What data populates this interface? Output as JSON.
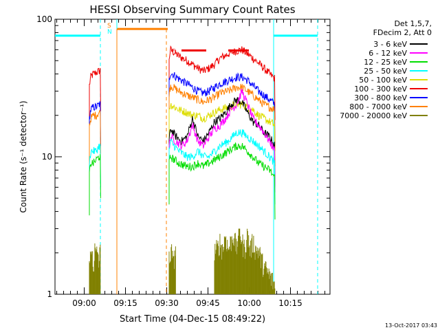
{
  "chart_data": {
    "type": "line",
    "title": "HESSI Observing Summary Count Rates",
    "xlabel": "Start Time (04-Dec-15 08:49:22)",
    "ylabel": "Count Rate (s⁻¹ detector⁻¹)",
    "ylog": true,
    "ylim": [
      1,
      100
    ],
    "xlim_minutes": [
      0,
      100
    ],
    "y_ticks": [
      {
        "value": 1,
        "label": "1"
      },
      {
        "value": 10,
        "label": "10"
      },
      {
        "value": 100,
        "label": "100"
      }
    ],
    "x_ticks": [
      {
        "minute": 10.63,
        "label": "09:00"
      },
      {
        "minute": 25.63,
        "label": "09:15"
      },
      {
        "minute": 40.63,
        "label": "09:30"
      },
      {
        "minute": 55.63,
        "label": "09:45"
      },
      {
        "minute": 70.63,
        "label": "10:00"
      },
      {
        "minute": 85.63,
        "label": "10:15"
      }
    ],
    "legend": {
      "placement": "right",
      "header": [
        "Det 1,5,7,",
        "FDecim 2, Att 0"
      ],
      "entries": [
        {
          "label": "3 - 6 keV",
          "color": "#000000"
        },
        {
          "label": "6 - 12 keV",
          "color": "#ff00ff"
        },
        {
          "label": "12 - 25 keV",
          "color": "#00dd00"
        },
        {
          "label": "25 - 50 keV",
          "color": "#00ffff"
        },
        {
          "label": "50 - 100 keV",
          "color": "#dddd00"
        },
        {
          "label": "100 - 300 keV",
          "color": "#ee0000"
        },
        {
          "label": "300 - 800 keV",
          "color": "#0000ff"
        },
        {
          "label": "800 - 7000 keV",
          "color": "#ff8000"
        },
        {
          "label": "7000 - 20000 keV",
          "color": "#808000"
        }
      ]
    },
    "series": [
      {
        "name": "100 - 300 keV",
        "color": "#ee0000",
        "segments": [
          {
            "x": [
              12.5,
              13,
              14,
              15,
              16,
              16.6
            ],
            "y": [
              33,
              38,
              40,
              41,
              42,
              43
            ]
          },
          {
            "x": [
              41.5,
              42,
              45,
              48,
              50,
              52,
              54,
              56,
              58,
              60,
              63,
              66,
              68,
              70,
              72,
              74,
              76,
              78,
              80
            ],
            "y": [
              52,
              60,
              54,
              50,
              47,
              44,
              42,
              44,
              47,
              52,
              56,
              59,
              60,
              56,
              52,
              48,
              44,
              40,
              37
            ]
          }
        ]
      },
      {
        "name": "300 - 800 keV",
        "color": "#0000ff",
        "segments": [
          {
            "x": [
              12.5,
              13,
              14,
              15,
              16,
              16.6
            ],
            "y": [
              19,
              22,
              23,
              23,
              24,
              24
            ]
          },
          {
            "x": [
              41.5,
              42,
              45,
              48,
              50,
              52,
              54,
              56,
              58,
              60,
              63,
              66,
              68,
              70,
              72,
              74,
              76,
              78,
              80
            ],
            "y": [
              36,
              41,
              37,
              34,
              32,
              30,
              29,
              30,
              32,
              34,
              36,
              38,
              38,
              36,
              33,
              30,
              28,
              26,
              24
            ]
          }
        ]
      },
      {
        "name": "800 - 7000 keV",
        "color": "#ff8000",
        "segments": [
          {
            "x": [
              12.5,
              13,
              14,
              15,
              16,
              16.6
            ],
            "y": [
              17,
              19,
              20,
              20,
              21,
              21
            ]
          },
          {
            "x": [
              41.5,
              42,
              45,
              48,
              50,
              52,
              54,
              56,
              58,
              60,
              63,
              66,
              68,
              70,
              72,
              74,
              76,
              78,
              80
            ],
            "y": [
              29,
              33,
              30,
              28,
              27,
              26,
              25,
              26,
              27,
              29,
              30,
              32,
              32,
              30,
              28,
              26,
              24,
              23,
              22
            ]
          }
        ]
      },
      {
        "name": "50 - 100 keV",
        "color": "#dddd00",
        "segments": [
          {
            "x": [
              41.5,
              42,
              45,
              48,
              50,
              52,
              54,
              56,
              58,
              60,
              63,
              66,
              68,
              70,
              72,
              74,
              76,
              78,
              80
            ],
            "y": [
              22,
              24,
              22,
              21,
              20,
              20,
              19,
              20,
              21,
              22,
              23,
              24,
              24,
              23,
              22,
              20,
              19,
              18,
              17
            ]
          }
        ]
      },
      {
        "name": "3 - 6 keV",
        "color": "#000000",
        "segments": [
          {
            "x": [
              41.5,
              42,
              44,
              46,
              48,
              50,
              52,
              54,
              56,
              58,
              60,
              62,
              64,
              66,
              68,
              70,
              72,
              74,
              76,
              78,
              80
            ],
            "y": [
              13,
              16,
              14,
              13,
              14,
              19,
              14,
              13,
              15,
              18,
              19,
              21,
              24,
              26,
              25,
              21,
              18,
              17,
              15,
              14,
              12
            ]
          }
        ]
      },
      {
        "name": "6 - 12 keV",
        "color": "#ff00ff",
        "segments": [
          {
            "x": [
              41.5,
              42,
              44,
              46,
              48,
              50,
              52,
              54,
              56,
              58,
              60,
              62,
              64,
              66,
              68,
              70,
              72,
              74,
              76,
              78,
              80
            ],
            "y": [
              12,
              14,
              13,
              12,
              13,
              17,
              13,
              12,
              14,
              16,
              17,
              19,
              22,
              24,
              30,
              24,
              19,
              17,
              15,
              13,
              11
            ]
          }
        ]
      },
      {
        "name": "25 - 50 keV",
        "color": "#00ffff",
        "segments": [
          {
            "x": [
              12.5,
              13,
              14,
              15,
              16,
              16.6
            ],
            "y": [
              9,
              11,
              11,
              11,
              12,
              12
            ]
          },
          {
            "x": [
              41.5,
              42,
              45,
              48,
              50,
              52,
              54,
              56,
              58,
              60,
              63,
              66,
              68,
              70,
              72,
              74,
              76,
              78,
              80
            ],
            "y": [
              11,
              13,
              11,
              10,
              10,
              11,
              10,
              10,
              11,
              12,
              13,
              15,
              15,
              14,
              13,
              12,
              11,
              10,
              9
            ]
          }
        ]
      },
      {
        "name": "12 - 25 keV",
        "color": "#00dd00",
        "segments": [
          {
            "x": [
              12.5,
              13,
              14,
              15,
              16,
              16.6
            ],
            "y": [
              7.5,
              9,
              9,
              9.5,
              10,
              10
            ]
          },
          {
            "x": [
              41.5,
              42,
              45,
              48,
              50,
              52,
              54,
              56,
              58,
              60,
              63,
              66,
              68,
              70,
              72,
              74,
              76,
              78,
              80
            ],
            "y": [
              9,
              10,
              9,
              8.5,
              8.5,
              9,
              8.5,
              9,
              9.5,
              10,
              11,
              12,
              12,
              11,
              10,
              9,
              8.5,
              8,
              7
            ]
          }
        ]
      },
      {
        "name": "7000 - 20000 keV",
        "color": "#808000",
        "style": "bars",
        "segments": [
          {
            "x": [
              12.5,
              13,
              13.5,
              14,
              14.5,
              15,
              15.5,
              16,
              16.5
            ],
            "y": [
              2,
              1.7,
              2,
              1.5,
              2,
              1.8,
              2,
              1.6,
              2
            ]
          },
          {
            "x": [
              41.5,
              42,
              42.5,
              43,
              43.5,
              44
            ],
            "y": [
              2,
              1.7,
              2,
              1.5,
              2,
              1.8
            ]
          },
          {
            "x": [
              58,
              59,
              60,
              61,
              62,
              63,
              64,
              65,
              66,
              67,
              68,
              69,
              70,
              71,
              72,
              73,
              74,
              75,
              76,
              77,
              78,
              79,
              80
            ],
            "y": [
              2,
              2,
              2.3,
              2,
              2.6,
              2,
              2.3,
              2.6,
              2,
              3,
              2.3,
              2,
              2.6,
              2,
              2.3,
              2,
              2,
              1.7,
              1.5,
              1.4,
              1.3,
              1.2,
              1.1
            ]
          }
        ]
      }
    ],
    "annotations": {
      "saa_label": "S",
      "night_label": "N",
      "flare_label": "F",
      "saa_bar_y": 85,
      "night_level_y": 76,
      "saa_bar_x": [
        22.5,
        41
      ],
      "flare_bars": [
        [
          46,
          55
        ],
        [
          63,
          70.5
        ]
      ],
      "saa_bounds": [
        22.5,
        40.5
      ],
      "night_dashed": [
        16.5,
        95.5
      ],
      "night_solid": [
        22.5,
        79.5
      ],
      "night_bars": [
        [
          0,
          16.5
        ],
        [
          79.5,
          95.5
        ]
      ]
    },
    "footer_date": "13-Oct-2017 03:43"
  }
}
